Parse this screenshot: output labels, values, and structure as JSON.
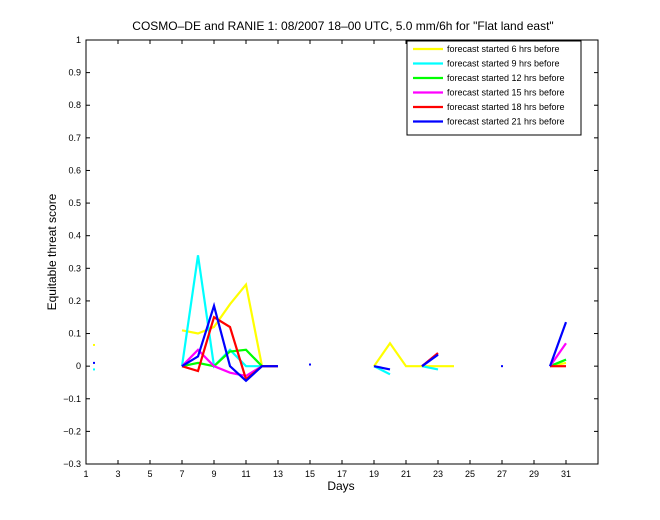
{
  "chart_data": {
    "type": "line",
    "title": "COSMO–DE and RANIE 1: 08/2007 18–00 UTC, 5.0 mm/6h for \"Flat land east\"",
    "xlabel": "Days",
    "ylabel": "Equitable threat score",
    "xlim": [
      1,
      33
    ],
    "ylim": [
      -0.3,
      1
    ],
    "xticks": [
      1,
      3,
      5,
      7,
      9,
      11,
      13,
      15,
      17,
      19,
      21,
      23,
      25,
      27,
      29,
      31
    ],
    "yticks": [
      -0.3,
      -0.2,
      -0.1,
      0,
      0.1,
      0.2,
      0.3,
      0.4,
      0.5,
      0.6,
      0.7,
      0.8,
      0.9,
      1
    ],
    "ytick_labels": [
      "−0.3",
      "−0.2",
      "−0.1",
      "0",
      "0.1",
      "0.2",
      "0.3",
      "0.4",
      "0.5",
      "0.6",
      "0.7",
      "0.8",
      "0.9",
      "1"
    ],
    "legend_position": "top-right",
    "series": [
      {
        "name": "forecast started 6 hrs before",
        "color": "#ffff00",
        "segments": [
          [
            [
              1.5,
              0.065
            ]
          ],
          [
            [
              7,
              0.11
            ],
            [
              8,
              0.1
            ],
            [
              9,
              0.12
            ],
            [
              10,
              0.19
            ],
            [
              11,
              0.25
            ],
            [
              12,
              0.0
            ],
            [
              13,
              0.0
            ]
          ],
          [
            [
              19,
              0.0
            ],
            [
              20,
              0.07
            ],
            [
              21,
              0.0
            ],
            [
              22,
              0.0
            ],
            [
              23,
              0.0
            ],
            [
              24,
              0.0
            ]
          ],
          [
            [
              30,
              0.0
            ],
            [
              31,
              0.01
            ]
          ]
        ]
      },
      {
        "name": "forecast started 9 hrs before",
        "color": "#00ffff",
        "segments": [
          [
            [
              1.5,
              -0.01
            ]
          ],
          [
            [
              7,
              0.0
            ],
            [
              8,
              0.34
            ],
            [
              9,
              0.0
            ],
            [
              10,
              0.05
            ],
            [
              11,
              0.0
            ],
            [
              12,
              0.0
            ],
            [
              13,
              0.0
            ]
          ],
          [
            [
              19,
              0.0
            ],
            [
              20,
              -0.025
            ]
          ],
          [
            [
              22,
              0.0
            ],
            [
              23,
              -0.01
            ]
          ],
          [
            [
              30,
              0.0
            ],
            [
              31,
              0.02
            ]
          ]
        ]
      },
      {
        "name": "forecast started 12 hrs before",
        "color": "#00ff00",
        "segments": [
          [
            [
              7,
              0.0
            ],
            [
              8,
              0.01
            ],
            [
              9,
              0.0
            ],
            [
              10,
              0.045
            ],
            [
              11,
              0.05
            ],
            [
              12,
              0.0
            ],
            [
              13,
              0.0
            ]
          ],
          [
            [
              30,
              0.0
            ],
            [
              31,
              0.02
            ]
          ]
        ]
      },
      {
        "name": "forecast started 15 hrs before",
        "color": "#ff00ff",
        "segments": [
          [
            [
              7,
              0.0
            ],
            [
              8,
              0.05
            ],
            [
              9,
              0.0
            ],
            [
              10,
              -0.02
            ],
            [
              11,
              -0.03
            ],
            [
              12,
              0.0
            ],
            [
              13,
              0.0
            ]
          ],
          [
            [
              22,
              0.0
            ],
            [
              23,
              0.04
            ]
          ],
          [
            [
              30,
              0.0
            ],
            [
              31,
              0.07
            ]
          ]
        ]
      },
      {
        "name": "forecast started 18 hrs before",
        "color": "#ff0000",
        "segments": [
          [
            [
              7,
              0.0
            ],
            [
              8,
              -0.015
            ],
            [
              9,
              0.15
            ],
            [
              10,
              0.12
            ],
            [
              11,
              -0.04
            ],
            [
              12,
              0.0
            ],
            [
              13,
              0.0
            ]
          ],
          [
            [
              22,
              0.0
            ],
            [
              23,
              0.04
            ]
          ],
          [
            [
              30,
              0.0
            ],
            [
              31,
              0.0
            ]
          ]
        ]
      },
      {
        "name": "forecast started 21 hrs before",
        "color": "#0000ff",
        "segments": [
          [
            [
              1.5,
              0.01
            ]
          ],
          [
            [
              7,
              0.0
            ],
            [
              8,
              0.03
            ],
            [
              9,
              0.185
            ],
            [
              10,
              0.0
            ],
            [
              11,
              -0.045
            ],
            [
              12,
              0.0
            ],
            [
              13,
              0.0
            ]
          ],
          [
            [
              15,
              0.005
            ]
          ],
          [
            [
              19,
              0.0
            ],
            [
              20,
              -0.01
            ]
          ],
          [
            [
              22,
              0.0
            ],
            [
              23,
              0.035
            ]
          ],
          [
            [
              27,
              0.0
            ]
          ],
          [
            [
              30,
              0.0
            ],
            [
              31,
              0.135
            ]
          ]
        ]
      }
    ]
  }
}
